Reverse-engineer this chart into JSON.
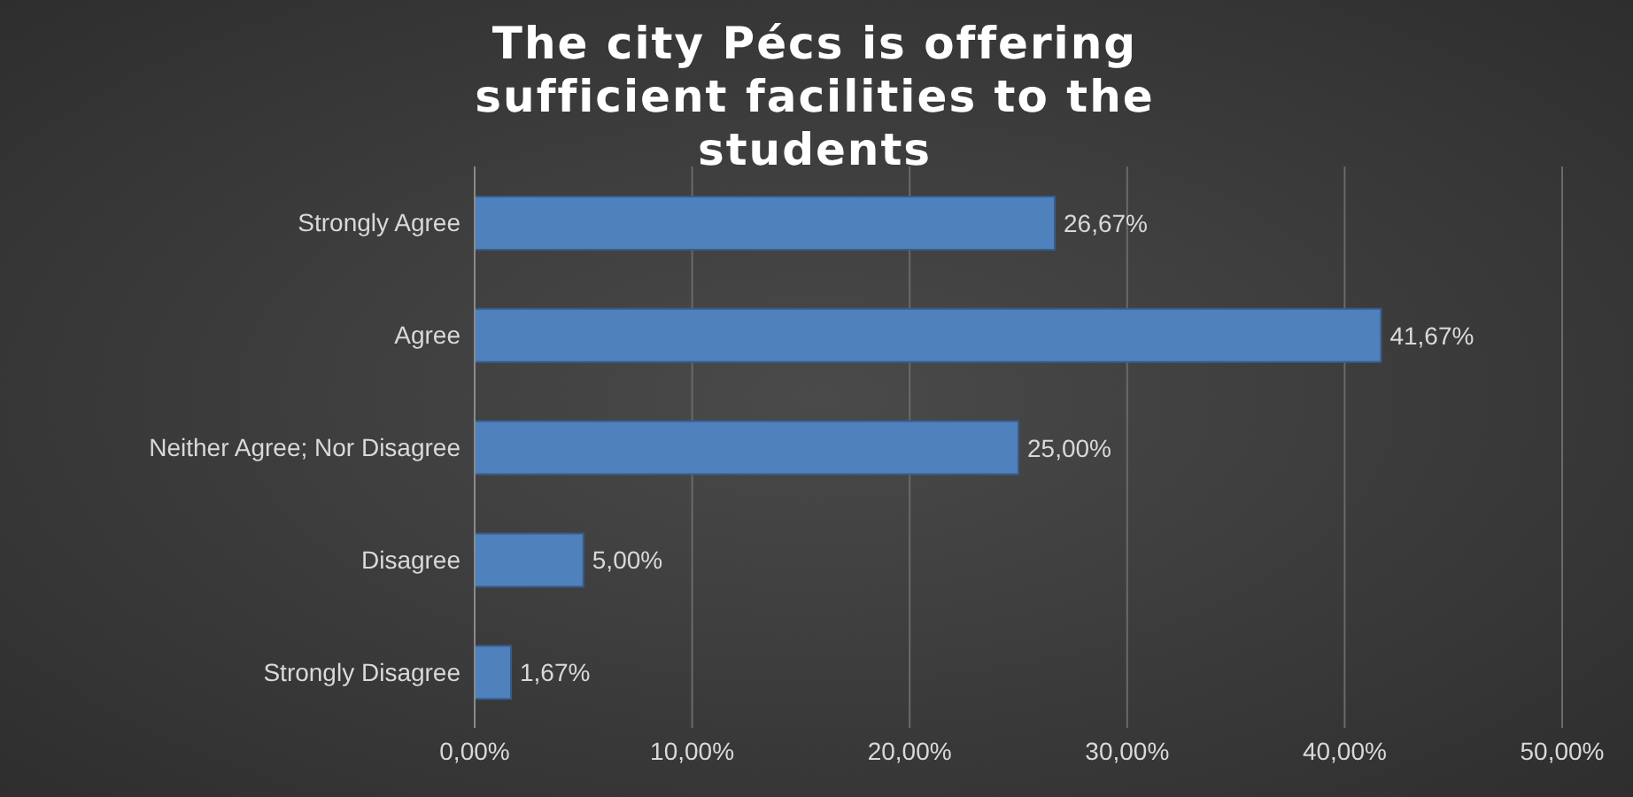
{
  "chart_data": {
    "type": "bar",
    "orientation": "horizontal",
    "title": "The city Pécs is offering sufficient facilities to the students",
    "categories": [
      "Strongly Agree",
      "Agree",
      "Neither Agree; Nor Disagree",
      "Disagree",
      "Strongly Disagree"
    ],
    "values": [
      26.67,
      41.67,
      25.0,
      5.0,
      1.67
    ],
    "value_labels": [
      "26,67%",
      "41,67%",
      "25,00%",
      "5,00%",
      "1,67%"
    ],
    "color": "#4f81bd",
    "xlim": [
      0,
      50
    ],
    "xticks": [
      {
        "value": 0,
        "label": "0,00%"
      },
      {
        "value": 10,
        "label": "10,00%"
      },
      {
        "value": 20,
        "label": "20,00%"
      },
      {
        "value": 30,
        "label": "30,00%"
      },
      {
        "value": 40,
        "label": "40,00%"
      },
      {
        "value": 50,
        "label": "50,00%"
      }
    ],
    "grid": "x",
    "legend": false
  }
}
